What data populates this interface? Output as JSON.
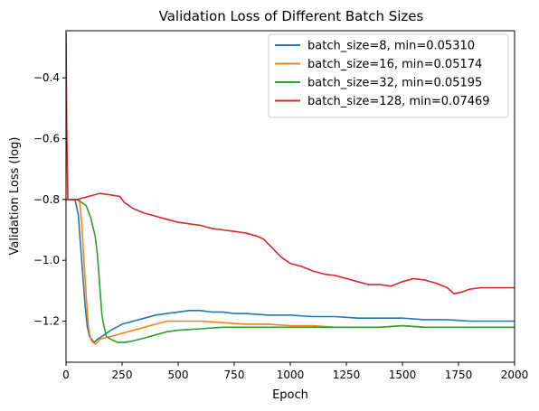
{
  "chart_data": {
    "type": "line",
    "title": "Validation Loss of Different Batch Sizes",
    "xlabel": "Epoch",
    "ylabel": "Validation Loss (log)",
    "xlim": [
      0,
      2000
    ],
    "ylim": [
      -1.335,
      -0.245
    ],
    "xticks": [
      0,
      250,
      500,
      750,
      1000,
      1250,
      1500,
      1750,
      2000
    ],
    "yticks": [
      -1.2,
      -1.0,
      -0.8,
      -0.6,
      -0.4
    ],
    "xtick_labels": [
      "0",
      "250",
      "500",
      "750",
      "1000",
      "1250",
      "1500",
      "1750",
      "2000"
    ],
    "ytick_labels": [
      "−1.2",
      "−1.0",
      "−0.8",
      "−0.6",
      "−0.4"
    ],
    "grid": false,
    "legend_position": "top-right",
    "series": [
      {
        "name": "batch_size=8, min=0.05310",
        "color": "#1f77b4",
        "x": [
          0,
          20,
          40,
          55,
          65,
          75,
          85,
          95,
          105,
          115,
          125,
          140,
          160,
          200,
          250,
          300,
          350,
          400,
          450,
          500,
          550,
          600,
          650,
          700,
          750,
          800,
          900,
          1000,
          1100,
          1200,
          1300,
          1400,
          1500,
          1600,
          1700,
          1800,
          1900,
          2000
        ],
        "y": [
          -0.8,
          -0.8,
          -0.8,
          -0.85,
          -0.95,
          -1.05,
          -1.15,
          -1.22,
          -1.25,
          -1.26,
          -1.27,
          -1.26,
          -1.25,
          -1.23,
          -1.21,
          -1.2,
          -1.19,
          -1.18,
          -1.175,
          -1.17,
          -1.165,
          -1.165,
          -1.17,
          -1.17,
          -1.175,
          -1.175,
          -1.18,
          -1.18,
          -1.185,
          -1.185,
          -1.19,
          -1.19,
          -1.19,
          -1.195,
          -1.195,
          -1.2,
          -1.2,
          -1.2
        ]
      },
      {
        "name": "batch_size=16, min=0.05174",
        "color": "#ff7f0e",
        "x": [
          0,
          30,
          60,
          70,
          80,
          90,
          100,
          110,
          120,
          130,
          140,
          150,
          170,
          200,
          250,
          300,
          350,
          400,
          450,
          500,
          600,
          700,
          800,
          900,
          1000,
          1100,
          1200,
          1300,
          1400,
          1500,
          1600,
          1700,
          1800,
          1900,
          2000
        ],
        "y": [
          -0.8,
          -0.8,
          -0.8,
          -0.88,
          -1.0,
          -1.12,
          -1.22,
          -1.26,
          -1.27,
          -1.275,
          -1.27,
          -1.26,
          -1.255,
          -1.25,
          -1.24,
          -1.23,
          -1.22,
          -1.21,
          -1.2,
          -1.2,
          -1.2,
          -1.205,
          -1.21,
          -1.21,
          -1.215,
          -1.215,
          -1.22,
          -1.22,
          -1.22,
          -1.215,
          -1.22,
          -1.22,
          -1.22,
          -1.22,
          -1.22
        ]
      },
      {
        "name": "batch_size=32, min=0.05195",
        "color": "#2ca02c",
        "x": [
          0,
          50,
          90,
          110,
          130,
          140,
          150,
          160,
          170,
          180,
          200,
          230,
          260,
          300,
          350,
          400,
          450,
          500,
          600,
          700,
          800,
          900,
          1000,
          1100,
          1200,
          1300,
          1400,
          1500,
          1600,
          1700,
          1800,
          1900,
          2000
        ],
        "y": [
          -0.8,
          -0.8,
          -0.82,
          -0.86,
          -0.92,
          -0.98,
          -1.08,
          -1.18,
          -1.22,
          -1.25,
          -1.26,
          -1.27,
          -1.27,
          -1.265,
          -1.255,
          -1.245,
          -1.235,
          -1.23,
          -1.225,
          -1.22,
          -1.22,
          -1.22,
          -1.22,
          -1.22,
          -1.22,
          -1.22,
          -1.22,
          -1.215,
          -1.22,
          -1.22,
          -1.22,
          -1.22,
          -1.22
        ]
      },
      {
        "name": "batch_size=128, min=0.07469",
        "color": "#d62728",
        "x": [
          0,
          3,
          8,
          20,
          50,
          100,
          150,
          200,
          240,
          260,
          300,
          350,
          400,
          450,
          500,
          550,
          600,
          650,
          700,
          750,
          800,
          850,
          880,
          920,
          960,
          1000,
          1050,
          1100,
          1150,
          1200,
          1250,
          1300,
          1350,
          1400,
          1450,
          1500,
          1550,
          1600,
          1650,
          1700,
          1730,
          1760,
          1800,
          1850,
          1900,
          1950,
          2000
        ],
        "y": [
          -0.25,
          -0.55,
          -0.8,
          -0.8,
          -0.8,
          -0.79,
          -0.78,
          -0.785,
          -0.79,
          -0.81,
          -0.83,
          -0.845,
          -0.855,
          -0.865,
          -0.875,
          -0.88,
          -0.885,
          -0.895,
          -0.9,
          -0.905,
          -0.91,
          -0.92,
          -0.93,
          -0.96,
          -0.99,
          -1.01,
          -1.02,
          -1.035,
          -1.045,
          -1.05,
          -1.06,
          -1.07,
          -1.08,
          -1.08,
          -1.085,
          -1.07,
          -1.06,
          -1.065,
          -1.075,
          -1.09,
          -1.11,
          -1.105,
          -1.095,
          -1.09,
          -1.09,
          -1.09,
          -1.09
        ]
      }
    ]
  }
}
